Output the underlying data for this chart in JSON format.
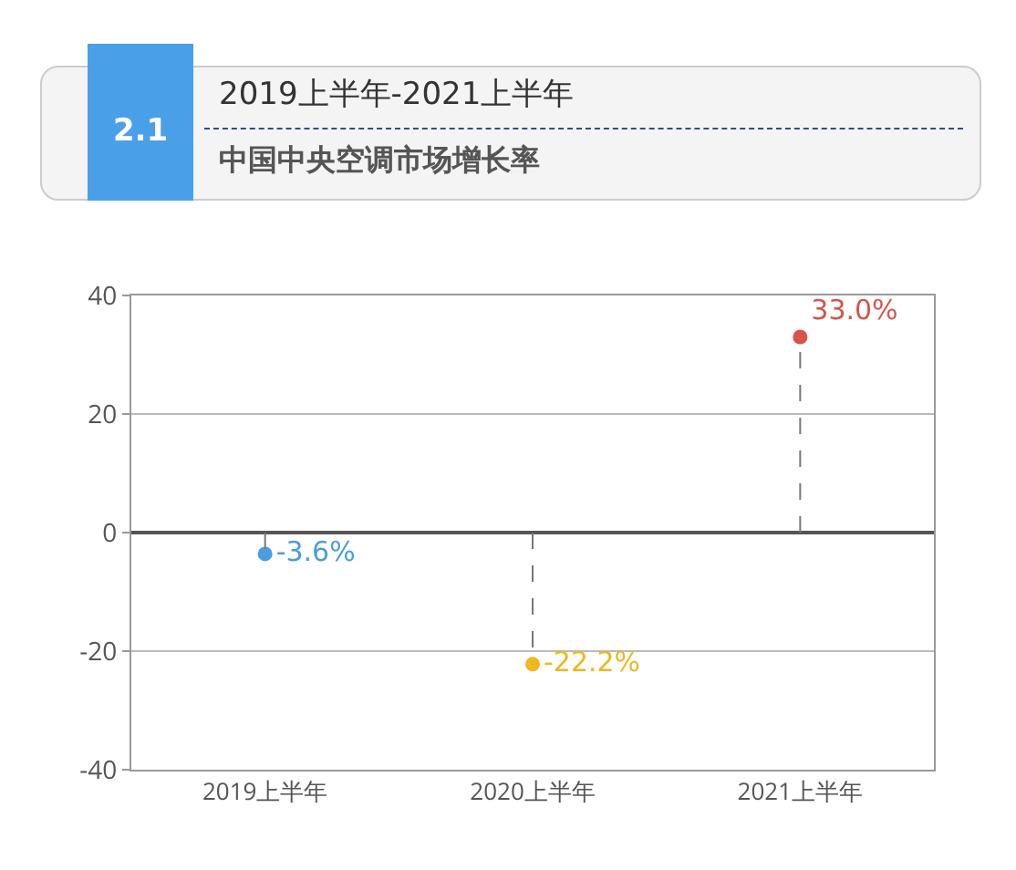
{
  "chart_data": {
    "type": "lollipop",
    "title": "2019上半年-2021上半年",
    "subtitle": "中国中央空调市场增长率",
    "annotations": [
      "2.1"
    ],
    "categories": [
      "2019上半年",
      "2020上半年",
      "2021上半年"
    ],
    "values": [
      -3.6,
      -22.2,
      33.0
    ],
    "colors": [
      "#4a9de0",
      "#f0b71e",
      "#d9534a"
    ],
    "value_labels": [
      "-3.6%",
      "-22.2%",
      "33.0%"
    ],
    "ylim": [
      -40,
      40
    ],
    "yticks": [
      -40,
      -20,
      0,
      20,
      40
    ],
    "grid": "y",
    "marker": "circle",
    "line_style": "dashed"
  }
}
